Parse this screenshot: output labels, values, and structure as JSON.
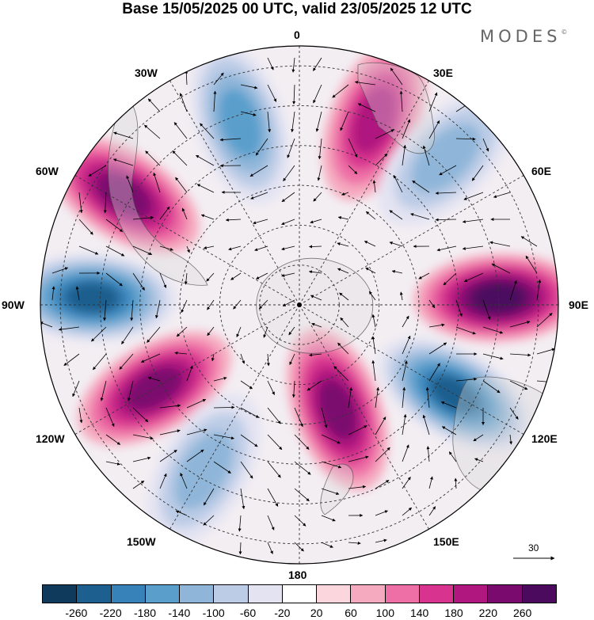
{
  "title": "Base 15/05/2025 00 UTC, valid 23/05/2025 12 UTC",
  "brand": "MODES",
  "brand_mark": "©",
  "longitude_labels": {
    "lon_0": "0",
    "lon_30e": "30E",
    "lon_60e": "60E",
    "lon_90e": "90E",
    "lon_120e": "120E",
    "lon_150e": "150E",
    "lon_180": "180",
    "lon_150w": "150W",
    "lon_120w": "120W",
    "lon_90w": "90W",
    "lon_60w": "60W",
    "lon_30w": "30W"
  },
  "reference_vector_label": "30",
  "colorbar": {
    "ticks": [
      "-260",
      "-220",
      "-180",
      "-140",
      "-100",
      "-60",
      "-20",
      "20",
      "60",
      "100",
      "140",
      "180",
      "220",
      "260"
    ],
    "colors": [
      "#0f3a5c",
      "#1d5f8e",
      "#3782b9",
      "#5a9fcc",
      "#8fb6d9",
      "#bccce6",
      "#e3e3f2",
      "#ffffff",
      "#fbd6dd",
      "#f6aac0",
      "#ee6fa6",
      "#d8348f",
      "#b0177f",
      "#7a0a6e",
      "#4b0a5e"
    ]
  },
  "map_anomalies": [
    {
      "name": "pos-south-atlantic-high",
      "lon": 22,
      "lat": -40,
      "value": 180
    },
    {
      "name": "neg-south-atlantic-low",
      "lon": -18,
      "lat": -42,
      "value": -180
    },
    {
      "name": "pos-argentina-high",
      "lon": -58,
      "lat": -38,
      "value": 220
    },
    {
      "name": "neg-southeast-pacific-low",
      "lon": -88,
      "lat": -38,
      "value": -260
    },
    {
      "name": "pos-southeast-pacific-high",
      "lon": -120,
      "lat": -48,
      "value": 220
    },
    {
      "name": "neg-indian-ocean-low",
      "lon": 45,
      "lat": -38,
      "value": -140
    },
    {
      "name": "pos-southern-indian-high",
      "lon": 88,
      "lat": -40,
      "value": 260
    },
    {
      "name": "neg-south-australia-low",
      "lon": 120,
      "lat": -45,
      "value": -260
    },
    {
      "name": "pos-ross-sea-high",
      "lon": 160,
      "lat": -62,
      "value": 220
    },
    {
      "name": "neg-south-pacific-low",
      "lon": -150,
      "lat": -42,
      "value": -140
    }
  ]
}
